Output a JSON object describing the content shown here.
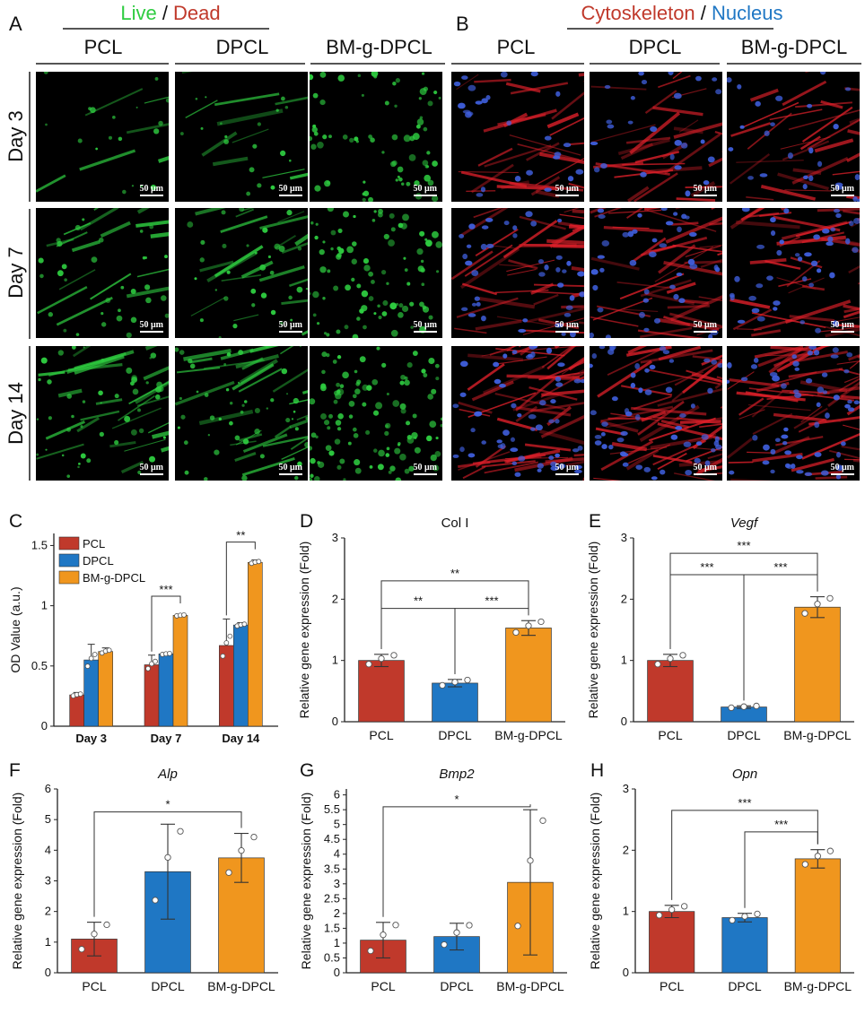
{
  "panel_letters": {
    "A": "A",
    "B": "B",
    "C": "C",
    "D": "D",
    "E": "E",
    "F": "F",
    "G": "G",
    "H": "H"
  },
  "panel_a": {
    "header_live": "Live",
    "header_sep": " / ",
    "header_dead": "Dead",
    "columns": [
      "PCL",
      "DPCL",
      "BM-g-DPCL"
    ],
    "rows": [
      "Day 3",
      "Day 7",
      "Day 14"
    ],
    "scale_label": "50 μm"
  },
  "panel_b": {
    "header_cyto": "Cytoskeleton",
    "header_sep": " / ",
    "header_nucleus": "Nucleus",
    "columns": [
      "PCL",
      "DPCL",
      "BM-g-DPCL"
    ],
    "scale_label": "50 μm"
  },
  "colors": {
    "pcl": "#c0392b",
    "dpcl": "#1f77c4",
    "bm": "#f0961e",
    "live": "#2ecc40",
    "dead": "#c0392b",
    "nucleus": "#1f77c4"
  },
  "chart_data": [
    {
      "panel": "C",
      "type": "bar",
      "ylabel": "OD Value (a.u.)",
      "categories": [
        "Day 3",
        "Day 7",
        "Day 14"
      ],
      "ylim": [
        0,
        1.6
      ],
      "yticks": [
        0,
        0.5,
        1,
        1.5
      ],
      "yticklabels": [
        "0",
        "0.5",
        "1",
        "1.5"
      ],
      "legend": [
        "PCL",
        "DPCL",
        "BM-g-DPCL"
      ],
      "series": [
        {
          "name": "PCL",
          "values": [
            0.26,
            0.51,
            0.67
          ],
          "err": [
            0.02,
            0.08,
            0.22
          ]
        },
        {
          "name": "DPCL",
          "values": [
            0.55,
            0.6,
            0.84
          ],
          "err": [
            0.13,
            0.01,
            0.02
          ]
        },
        {
          "name": "BM-g-DPCL",
          "values": [
            0.62,
            0.92,
            1.36
          ],
          "err": [
            0.03,
            0.01,
            0.02
          ]
        }
      ],
      "annotations": [
        {
          "text": "***",
          "group": 1,
          "from": 0,
          "to": 2
        },
        {
          "text": "**",
          "group": 2,
          "from": 0,
          "to": 2
        }
      ]
    },
    {
      "panel": "D",
      "type": "bar",
      "title": "Col I",
      "title_italic": false,
      "ylabel": "Relative gene expression (Fold)",
      "categories": [
        "PCL",
        "DPCL",
        "BM-g-DPCL"
      ],
      "values": [
        1.0,
        0.63,
        1.53
      ],
      "err": [
        0.1,
        0.06,
        0.12
      ],
      "ylim": [
        0,
        3
      ],
      "yticks": [
        0,
        1,
        2,
        3
      ],
      "yticklabels": [
        "0",
        "1",
        "2",
        "3"
      ],
      "annotations": [
        {
          "text": "**",
          "from": 0,
          "to": 1,
          "level": 1.85
        },
        {
          "text": "***",
          "from": 1,
          "to": 2,
          "level": 1.85
        },
        {
          "text": "**",
          "from": 0,
          "to": 2,
          "level": 2.3
        }
      ]
    },
    {
      "panel": "E",
      "type": "bar",
      "title": "Vegf",
      "title_italic": true,
      "ylabel": "Relative gene expression (Fold)",
      "categories": [
        "PCL",
        "DPCL",
        "BM-g-DPCL"
      ],
      "values": [
        1.0,
        0.24,
        1.87
      ],
      "err": [
        0.1,
        0.02,
        0.17
      ],
      "ylim": [
        0,
        3
      ],
      "yticks": [
        0,
        1,
        2,
        3
      ],
      "yticklabels": [
        "0",
        "1",
        "2",
        "3"
      ],
      "annotations": [
        {
          "text": "***",
          "from": 0,
          "to": 1,
          "level": 2.4
        },
        {
          "text": "***",
          "from": 1,
          "to": 2,
          "level": 2.4
        },
        {
          "text": "***",
          "from": 0,
          "to": 2,
          "level": 2.75
        }
      ]
    },
    {
      "panel": "F",
      "type": "bar",
      "title": "Alp",
      "title_italic": true,
      "ylabel": "Relative gene expression (Fold)",
      "categories": [
        "PCL",
        "DPCL",
        "BM-g-DPCL"
      ],
      "values": [
        1.1,
        3.3,
        3.75
      ],
      "err": [
        0.55,
        1.55,
        0.8
      ],
      "ylim": [
        0,
        6
      ],
      "yticks": [
        0,
        1,
        2,
        3,
        4,
        5,
        6
      ],
      "yticklabels": [
        "0",
        "1",
        "2",
        "3",
        "4",
        "5",
        "6"
      ],
      "annotations": [
        {
          "text": "*",
          "from": 0,
          "to": 2,
          "level": 5.25
        }
      ]
    },
    {
      "panel": "G",
      "type": "bar",
      "title": "Bmp2",
      "title_italic": true,
      "ylabel": "Relative gene expression (Fold)",
      "categories": [
        "PCL",
        "DPCL",
        "BM-g-DPCL"
      ],
      "values": [
        1.1,
        1.22,
        3.05
      ],
      "err": [
        0.6,
        0.45,
        2.45
      ],
      "ylim": [
        0,
        6.2
      ],
      "yticks": [
        0,
        0.5,
        1,
        1.5,
        2,
        2.5,
        3,
        3.5,
        4,
        4.5,
        5,
        5.5,
        6
      ],
      "yticklabels": [
        "0",
        "0.5",
        "1",
        "1.5",
        "2",
        "2.5",
        "3",
        "3.5",
        "4",
        "4.5",
        "5",
        "5.5",
        "6"
      ],
      "annotations": [
        {
          "text": "*",
          "from": 0,
          "to": 2,
          "level": 5.6
        }
      ]
    },
    {
      "panel": "H",
      "type": "bar",
      "title": "Opn",
      "title_italic": true,
      "ylabel": "Relative gene expression (Fold)",
      "categories": [
        "PCL",
        "DPCL",
        "BM-g-DPCL"
      ],
      "values": [
        1.0,
        0.9,
        1.86
      ],
      "err": [
        0.1,
        0.07,
        0.15
      ],
      "ylim": [
        0,
        3
      ],
      "yticks": [
        0,
        1,
        2,
        3
      ],
      "yticklabels": [
        "0",
        "1",
        "2",
        "3"
      ],
      "annotations": [
        {
          "text": "***",
          "from": 1,
          "to": 2,
          "level": 2.3
        },
        {
          "text": "***",
          "from": 0,
          "to": 2,
          "level": 2.65
        }
      ]
    }
  ]
}
